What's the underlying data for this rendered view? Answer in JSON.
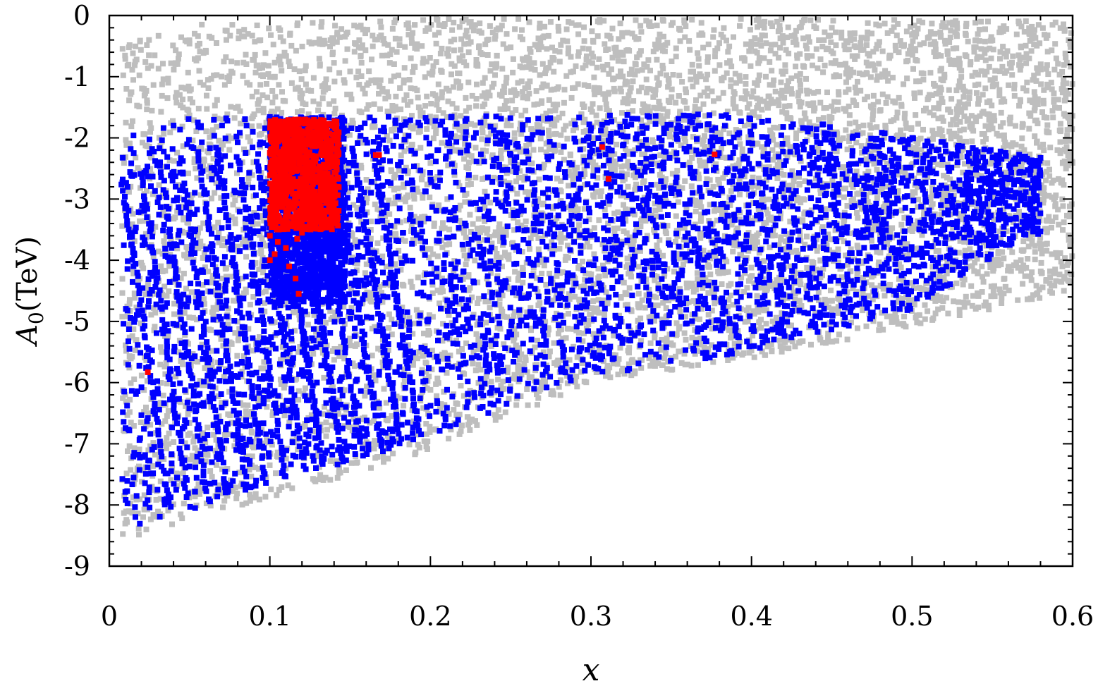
{
  "chart_data": {
    "type": "scatter",
    "title": "",
    "xlabel": "x",
    "ylabel": "A_0(TeV)",
    "ylabel_parts": {
      "symbol": "A",
      "subscript": "0",
      "unit": "(TeV)"
    },
    "xlim": [
      0,
      0.6
    ],
    "ylim": [
      -9,
      0
    ],
    "xticks": [
      0,
      0.1,
      0.2,
      0.3,
      0.4,
      0.5,
      0.6
    ],
    "xtick_labels": [
      "0",
      "0.1",
      "0.2",
      "0.3",
      "0.4",
      "0.5",
      "0.6"
    ],
    "yticks": [
      0,
      -1,
      -2,
      -3,
      -4,
      -5,
      -6,
      -7,
      -8,
      -9
    ],
    "ytick_labels": [
      "0",
      "-1",
      "-2",
      "-3",
      "-4",
      "-5",
      "-6",
      "-7",
      "-8",
      "-9"
    ],
    "grid": false,
    "legend": false,
    "series": [
      {
        "color": "#bebebe",
        "region": {
          "x_range": [
            0.008,
            0.6
          ],
          "upper_boundary": [
            [
              0.008,
              -0.5
            ],
            [
              0.05,
              -0.15
            ],
            [
              0.2,
              -0.05
            ],
            [
              0.4,
              -0.05
            ],
            [
              0.6,
              -0.1
            ]
          ],
          "lower_boundary": [
            [
              0.008,
              -8.6
            ],
            [
              0.1,
              -7.9
            ],
            [
              0.2,
              -7.1
            ],
            [
              0.3,
              -6.0
            ],
            [
              0.4,
              -5.6
            ],
            [
              0.5,
              -5.1
            ],
            [
              0.6,
              -4.5
            ]
          ],
          "density": "dense"
        }
      },
      {
        "color": "#0000ff",
        "region": {
          "x_range": [
            0.008,
            0.58
          ],
          "upper_boundary": [
            [
              0.008,
              -2.0
            ],
            [
              0.05,
              -1.65
            ],
            [
              0.2,
              -1.65
            ],
            [
              0.4,
              -1.6
            ],
            [
              0.58,
              -2.3
            ]
          ],
          "lower_boundary": [
            [
              0.008,
              -8.4
            ],
            [
              0.1,
              -7.7
            ],
            [
              0.2,
              -6.9
            ],
            [
              0.3,
              -5.9
            ],
            [
              0.4,
              -5.5
            ],
            [
              0.5,
              -4.8
            ],
            [
              0.57,
              -3.6
            ]
          ],
          "density": "medium"
        },
        "cluster": {
          "x_range": [
            0.1,
            0.147
          ],
          "y_range": [
            -4.7,
            -1.65
          ]
        },
        "striations": true
      },
      {
        "color": "#ff0000",
        "cluster": {
          "x_range": [
            0.1,
            0.143
          ],
          "y_range": [
            -3.5,
            -1.7
          ]
        },
        "sparse_points": [
          [
            0.1,
            -3.6
          ],
          [
            0.103,
            -3.9
          ],
          [
            0.1,
            -4.0
          ],
          [
            0.11,
            -3.8
          ],
          [
            0.12,
            -3.55
          ],
          [
            0.127,
            -3.45
          ],
          [
            0.135,
            -3.35
          ],
          [
            0.14,
            -3.2
          ],
          [
            0.105,
            -3.7
          ],
          [
            0.117,
            -3.65
          ],
          [
            0.112,
            -4.1
          ],
          [
            0.116,
            -4.3
          ],
          [
            0.118,
            -4.55
          ],
          [
            0.166,
            -2.28
          ],
          [
            0.168,
            -2.28
          ],
          [
            0.307,
            -2.15
          ],
          [
            0.311,
            -2.67
          ],
          [
            0.377,
            -2.27
          ],
          [
            0.024,
            -5.83
          ]
        ]
      }
    ]
  }
}
